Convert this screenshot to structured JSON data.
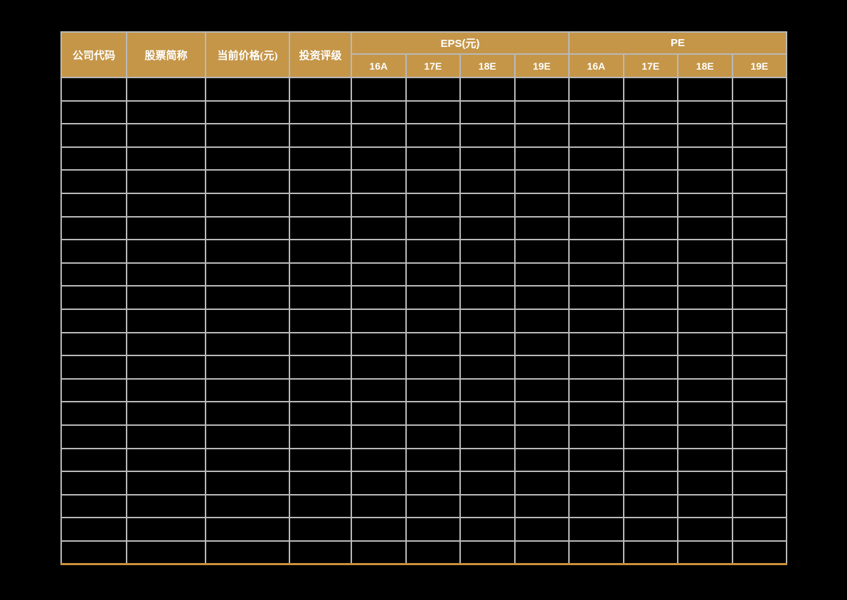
{
  "page": {
    "background_color": "#000000"
  },
  "table": {
    "style": {
      "header_background": "#c59648",
      "header_text_color": "#ffffff",
      "grid_line_color": "#b9b9b9",
      "bottom_rule_color": "#c9903c",
      "body_cell_background": "#000000"
    },
    "columns": [
      {
        "key": "company_code",
        "label": "公司代码"
      },
      {
        "key": "stock_name",
        "label": "股票简称"
      },
      {
        "key": "current_price",
        "label": "当前价格(元)"
      },
      {
        "key": "rating",
        "label": "投资评级"
      }
    ],
    "groups": [
      {
        "key": "eps",
        "label": "EPS(元)",
        "sub": [
          "16A",
          "17E",
          "18E",
          "19E"
        ]
      },
      {
        "key": "pe",
        "label": "PE",
        "sub": [
          "16A",
          "17E",
          "18E",
          "19E"
        ]
      }
    ],
    "body_rows": 21,
    "body_cols": 12,
    "body_cell_value": ""
  }
}
